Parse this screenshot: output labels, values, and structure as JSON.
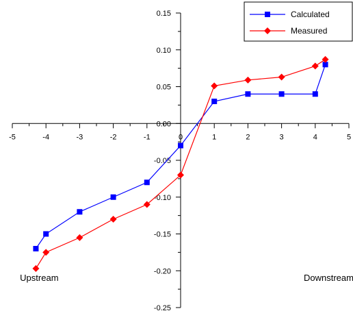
{
  "chart_data": {
    "type": "line",
    "xlim": [
      -5,
      5
    ],
    "ylim": [
      -0.25,
      0.15
    ],
    "x_ticks": [
      -5,
      -4,
      -3,
      -2,
      -1,
      0,
      1,
      2,
      3,
      4,
      5
    ],
    "x_tick_labels": [
      "-5",
      "-4",
      "-3",
      "-2",
      "-1",
      "0",
      "1",
      "2",
      "3",
      "4",
      "5"
    ],
    "y_ticks": [
      0.15,
      0.1,
      0.05,
      0.0,
      -0.05,
      -0.1,
      -0.15,
      -0.2,
      -0.25
    ],
    "y_tick_labels": [
      "0.15",
      "0.10",
      "0.05",
      "0.00",
      "-0.05",
      "-0.10",
      "-0.15",
      "-0.20",
      "-0.25"
    ],
    "grid": false,
    "legend_position": "top-right",
    "annotations": [
      {
        "text": "Upstream",
        "x": -4.2,
        "y": -0.21
      },
      {
        "text": "Downstream",
        "x": 4.4,
        "y": -0.21
      }
    ],
    "series": [
      {
        "name": "Calculated",
        "color": "#0000ff",
        "marker": "square",
        "x": [
          -4.3,
          -4,
          -3,
          -2,
          -1,
          0,
          1,
          2,
          3,
          4,
          4.3
        ],
        "y": [
          -0.17,
          -0.15,
          -0.12,
          -0.1,
          -0.08,
          -0.03,
          0.03,
          0.04,
          0.04,
          0.04,
          0.08
        ]
      },
      {
        "name": "Measured",
        "color": "#ff0000",
        "marker": "diamond",
        "x": [
          -4.3,
          -4,
          -3,
          -2,
          -1,
          0,
          1,
          2,
          3,
          4,
          4.3
        ],
        "y": [
          -0.197,
          -0.175,
          -0.155,
          -0.13,
          -0.11,
          -0.07,
          0.051,
          0.059,
          0.063,
          0.078,
          0.087
        ]
      }
    ]
  }
}
